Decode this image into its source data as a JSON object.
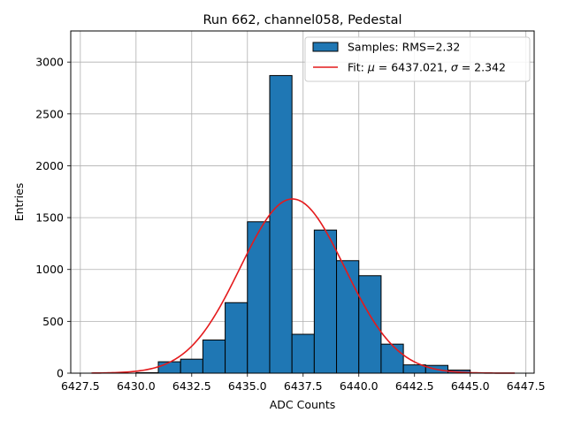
{
  "chart_data": {
    "type": "bar",
    "title": "Run 662, channel058, Pedestal",
    "xlabel": "ADC Counts",
    "ylabel": "Entries",
    "xlim": [
      6427.07,
      6447.87
    ],
    "ylim": [
      0,
      3300
    ],
    "xticks": [
      6427.5,
      6430.0,
      6432.5,
      6435.0,
      6437.5,
      6440.0,
      6442.5,
      6445.0,
      6447.5
    ],
    "xtick_labels": [
      "6427.5",
      "6430.0",
      "6432.5",
      "6435.0",
      "6437.5",
      "6440.0",
      "6442.5",
      "6445.0",
      "6447.5"
    ],
    "yticks": [
      0,
      500,
      1000,
      1500,
      2000,
      2500,
      3000
    ],
    "ytick_labels": [
      "0",
      "500",
      "1000",
      "1500",
      "2000",
      "2500",
      "3000"
    ],
    "grid": true,
    "legend_position": "top-right",
    "histogram": {
      "name": "Samples: RMS=2.32",
      "color": "#1f77b4",
      "edge_color": "#000000",
      "bin_edges": [
        6430.0,
        6431.0,
        6432.0,
        6433.0,
        6434.0,
        6435.0,
        6436.0,
        6437.0,
        6438.0,
        6439.0,
        6440.0,
        6441.0,
        6442.0,
        6443.0,
        6444.0,
        6445.0
      ],
      "counts": [
        5,
        110,
        135,
        320,
        680,
        1460,
        2870,
        375,
        1380,
        1085,
        940,
        280,
        80,
        75,
        30
      ]
    },
    "fit": {
      "name": "Fit: μ = 6437.021, σ = 2.342",
      "name_parts": [
        "Fit: ",
        "μ",
        " = 6437.021, ",
        "σ",
        " = 2.342"
      ],
      "color": "#e41a1c",
      "mu": 6437.021,
      "sigma": 2.342,
      "amplitude": 1680,
      "x_range": [
        6428.0,
        6447.0
      ]
    }
  }
}
